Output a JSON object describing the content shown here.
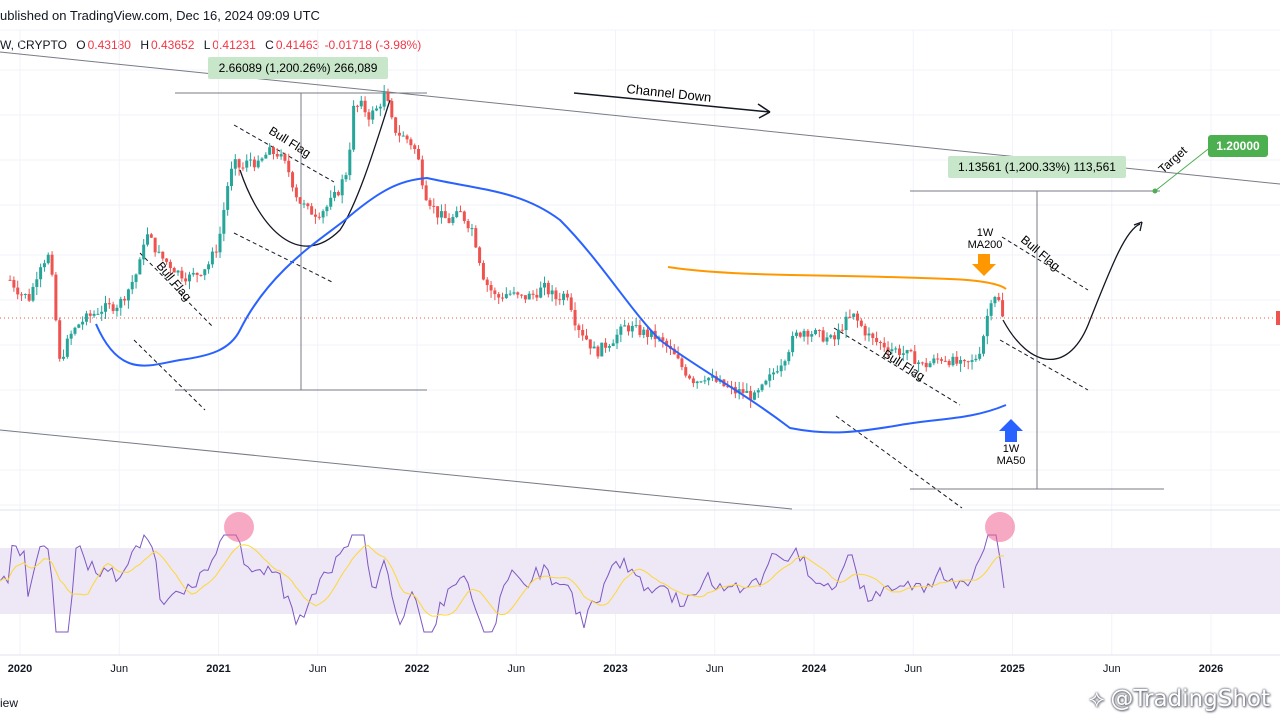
{
  "header": {
    "published": "ublished on TradingView.com, Dec 16, 2024 09:09 UTC"
  },
  "ohlc": {
    "symbol": "W, CRYPTO",
    "o_label": "O",
    "o_value": "0.43180",
    "h_label": "H",
    "h_value": "0.43652",
    "l_label": "L",
    "l_value": "0.41231",
    "c_label": "C",
    "c_value": "0.41463",
    "change": "-0.01718 (-3.98%)"
  },
  "footer": {
    "view_label": "iew",
    "watermark": "@TradingShot"
  },
  "colors": {
    "bull": "#26a69a",
    "bear": "#ef5350",
    "ma50": "#2962ff",
    "ma200": "#ff9800",
    "rsi": "#7e57c2",
    "rsi_ma": "#fdd835",
    "rsi_band": "#ede7f6",
    "highlight": "#f06292",
    "target": "#4caf50"
  },
  "chart_data": {
    "type": "candlestick",
    "title": "",
    "x_ticks": [
      "2020",
      "Jun",
      "2021",
      "Jun",
      "2022",
      "Jun",
      "2023",
      "Jun",
      "2024",
      "Jun",
      "2025",
      "Jun",
      "2026"
    ],
    "current_price": 0.41463,
    "annotations": {
      "channel_label": "Channel Down",
      "bull_flag_label": "Bull Flag",
      "measure_2021": "2.66089 (1,200.26%) 266,089",
      "measure_2025": "1.13561 (1,200.33%) 113,561",
      "target_label": "Target",
      "target_price": "1.20000",
      "ma200_label_1": "1W",
      "ma200_label_2": "MA200",
      "ma50_label_1": "1W",
      "ma50_label_2": "MA50"
    },
    "price_path_weekly": [
      [
        2019.95,
        0.55
      ],
      [
        2020.0,
        0.5
      ],
      [
        2020.05,
        0.48
      ],
      [
        2020.1,
        0.62
      ],
      [
        2020.15,
        0.66
      ],
      [
        2020.2,
        0.3
      ],
      [
        2020.25,
        0.36
      ],
      [
        2020.3,
        0.4
      ],
      [
        2020.35,
        0.42
      ],
      [
        2020.4,
        0.44
      ],
      [
        2020.45,
        0.45
      ],
      [
        2020.5,
        0.46
      ],
      [
        2020.55,
        0.52
      ],
      [
        2020.6,
        0.6
      ],
      [
        2020.63,
        0.78
      ],
      [
        2020.67,
        0.72
      ],
      [
        2020.7,
        0.66
      ],
      [
        2020.75,
        0.62
      ],
      [
        2020.8,
        0.58
      ],
      [
        2020.85,
        0.56
      ],
      [
        2020.9,
        0.58
      ],
      [
        2020.95,
        0.62
      ],
      [
        2021.0,
        0.72
      ],
      [
        2021.05,
        1.15
      ],
      [
        2021.08,
        1.3
      ],
      [
        2021.12,
        1.25
      ],
      [
        2021.16,
        1.35
      ],
      [
        2021.2,
        1.28
      ],
      [
        2021.25,
        1.42
      ],
      [
        2021.3,
        1.4
      ],
      [
        2021.35,
        1.25
      ],
      [
        2021.4,
        1.0
      ],
      [
        2021.45,
        0.92
      ],
      [
        2021.5,
        0.9
      ],
      [
        2021.55,
        0.95
      ],
      [
        2021.6,
        1.05
      ],
      [
        2021.65,
        1.25
      ],
      [
        2021.68,
        1.95
      ],
      [
        2021.72,
        2.0
      ],
      [
        2021.76,
        1.85
      ],
      [
        2021.8,
        1.95
      ],
      [
        2021.84,
        2.2
      ],
      [
        2021.88,
        1.7
      ],
      [
        2021.92,
        1.6
      ],
      [
        2021.96,
        1.55
      ],
      [
        2022.0,
        1.4
      ],
      [
        2022.04,
        1.05
      ],
      [
        2022.1,
        0.9
      ],
      [
        2022.16,
        0.85
      ],
      [
        2022.22,
        0.9
      ],
      [
        2022.28,
        0.8
      ],
      [
        2022.34,
        0.55
      ],
      [
        2022.4,
        0.48
      ],
      [
        2022.46,
        0.5
      ],
      [
        2022.52,
        0.48
      ],
      [
        2022.58,
        0.49
      ],
      [
        2022.64,
        0.52
      ],
      [
        2022.7,
        0.48
      ],
      [
        2022.76,
        0.5
      ],
      [
        2022.8,
        0.4
      ],
      [
        2022.85,
        0.36
      ],
      [
        2022.9,
        0.32
      ],
      [
        2022.95,
        0.34
      ],
      [
        2023.0,
        0.36
      ],
      [
        2023.05,
        0.39
      ],
      [
        2023.1,
        0.38
      ],
      [
        2023.15,
        0.37
      ],
      [
        2023.2,
        0.36
      ],
      [
        2023.25,
        0.34
      ],
      [
        2023.3,
        0.31
      ],
      [
        2023.35,
        0.28
      ],
      [
        2023.4,
        0.26
      ],
      [
        2023.45,
        0.27
      ],
      [
        2023.5,
        0.26
      ],
      [
        2023.55,
        0.25
      ],
      [
        2023.6,
        0.24
      ],
      [
        2023.65,
        0.24
      ],
      [
        2023.7,
        0.23
      ],
      [
        2023.75,
        0.25
      ],
      [
        2023.8,
        0.28
      ],
      [
        2023.85,
        0.31
      ],
      [
        2023.9,
        0.36
      ],
      [
        2023.95,
        0.38
      ],
      [
        2024.0,
        0.37
      ],
      [
        2024.05,
        0.36
      ],
      [
        2024.1,
        0.35
      ],
      [
        2024.15,
        0.4
      ],
      [
        2024.2,
        0.42
      ],
      [
        2024.25,
        0.38
      ],
      [
        2024.3,
        0.35
      ],
      [
        2024.35,
        0.34
      ],
      [
        2024.4,
        0.33
      ],
      [
        2024.45,
        0.32
      ],
      [
        2024.5,
        0.31
      ],
      [
        2024.55,
        0.29
      ],
      [
        2024.6,
        0.3
      ],
      [
        2024.65,
        0.31
      ],
      [
        2024.7,
        0.3
      ],
      [
        2024.75,
        0.29
      ],
      [
        2024.8,
        0.3
      ],
      [
        2024.83,
        0.32
      ],
      [
        2024.86,
        0.38
      ],
      [
        2024.89,
        0.48
      ],
      [
        2024.92,
        0.5
      ],
      [
        2024.95,
        0.41463
      ]
    ]
  }
}
